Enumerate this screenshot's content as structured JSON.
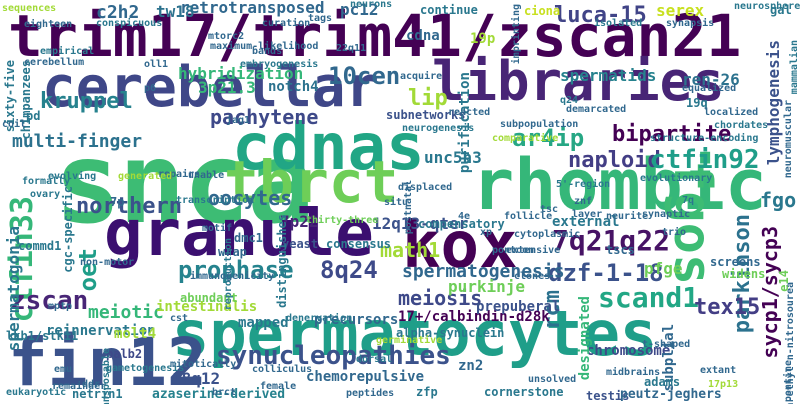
{
  "colors": {
    "background": "#ffffff",
    "palette": [
      "#440154",
      "#482576",
      "#3f4788",
      "#31688e",
      "#26828e",
      "#1f9e89",
      "#35b779",
      "#6ece58",
      "#b5de2b",
      "#fde725"
    ]
  },
  "words": [
    {
      "text": "trim17/trim41/zscan21",
      "color": "#440154"
    },
    {
      "text": "snca",
      "color": "#3dbc74"
    },
    {
      "text": "cerebellar",
      "color": "#3f4788"
    },
    {
      "text": "libraries",
      "color": "#482576"
    },
    {
      "text": "cdnas",
      "color": "#21a685"
    },
    {
      "text": "rhombic",
      "color": "#35b779"
    },
    {
      "text": "tbrct",
      "color": "#6ece58"
    },
    {
      "text": "granule",
      "color": "#3b0f70"
    },
    {
      "text": "kox",
      "color": "#440154"
    },
    {
      "text": "spermatocytes",
      "color": "#1f9e89"
    },
    {
      "text": "fin12",
      "color": "#3b528b"
    },
    {
      "text": "fgos",
      "color": "#3dbc74"
    },
    {
      "text": "trim17",
      "color": "#2a788e"
    },
    {
      "text": "10cen",
      "color": "#31688e"
    },
    {
      "text": "kruppel",
      "color": "#26828e"
    },
    {
      "text": "luca-15",
      "color": "#414487"
    },
    {
      "text": "multi-finger",
      "color": "#2c728e"
    },
    {
      "text": "pachytene",
      "color": "#3e4989"
    },
    {
      "text": "ar4ip",
      "color": "#26a784"
    },
    {
      "text": "bipartite",
      "color": "#440154"
    },
    {
      "text": "naploid",
      "color": "#433e85"
    },
    {
      "text": "ctfin92",
      "color": "#1f9e89"
    },
    {
      "text": "ctfin33",
      "color": "#35b779"
    },
    {
      "text": "fgo",
      "color": "#2a788e"
    },
    {
      "text": "northern",
      "color": "#3b528b"
    },
    {
      "text": "prophase",
      "color": "#25838e"
    },
    {
      "text": "8q24",
      "color": "#3e4a89"
    },
    {
      "text": "7q21q22",
      "color": "#471365"
    },
    {
      "text": "parkinson",
      "color": "#2c728e"
    },
    {
      "text": "sycp1/sycp3",
      "color": "#440154"
    },
    {
      "text": "dzf-1-18",
      "color": "#3b528b"
    },
    {
      "text": "oet",
      "color": "#1f9e89"
    },
    {
      "text": "math1",
      "color": "#a2da37"
    },
    {
      "text": "spermatogenesis",
      "color": "#31688e"
    },
    {
      "text": "zscan",
      "color": "#482576"
    },
    {
      "text": "synucleopathies",
      "color": "#3b528b"
    },
    {
      "text": "scand1",
      "color": "#22a785"
    },
    {
      "text": "fin12",
      "color": "#3b528b"
    },
    {
      "text": "tex15",
      "color": "#433e85"
    },
    {
      "text": "rcm",
      "color": "#2c728e"
    },
    {
      "text": "meiosis",
      "color": "#3e4989"
    },
    {
      "text": "oocytes",
      "color": "#31688e"
    },
    {
      "text": "spermatogonia",
      "color": "#2a788e"
    },
    {
      "text": "retrotransposed",
      "color": "#31688e"
    },
    {
      "text": "hybridization",
      "color": "#35b779"
    },
    {
      "text": "lip",
      "color": "#a2da37"
    },
    {
      "text": "spermatids",
      "color": "#26828e"
    },
    {
      "text": "ren-26",
      "color": "#2c728e"
    },
    {
      "text": "serex",
      "color": "#c8e020"
    },
    {
      "text": "unc5h3",
      "color": "#2a788e"
    },
    {
      "text": "purkinje",
      "color": "#6ece58"
    },
    {
      "text": "external",
      "color": "#2a788e"
    },
    {
      "text": "pfge",
      "color": "#6ece58"
    },
    {
      "text": "12q13-qter",
      "color": "#3b528b"
    },
    {
      "text": "7p22",
      "color": "#482576"
    },
    {
      "text": "chromosome",
      "color": "#3e4989"
    },
    {
      "text": "designated",
      "color": "#35b779"
    },
    {
      "text": "subplial",
      "color": "#31688e"
    },
    {
      "text": "c2h2",
      "color": "#31688e"
    },
    {
      "text": "tw18",
      "color": "#2c728e"
    },
    {
      "text": "pc12",
      "color": "#31688e"
    },
    {
      "text": "cdna",
      "color": "#31688e"
    },
    {
      "text": "19p",
      "color": "#a2da37"
    },
    {
      "text": "3p21.3",
      "color": "#35b779"
    },
    {
      "text": "notch4",
      "color": "#2c728e"
    },
    {
      "text": "lymphogenesis",
      "color": "#3b528b"
    },
    {
      "text": "17+/calbindin-d28k",
      "color": "#440154"
    },
    {
      "text": "meiotic",
      "color": "#35b779"
    },
    {
      "text": "intestinalis",
      "color": "#a2da37"
    },
    {
      "text": "reinnervation",
      "color": "#2a788e"
    },
    {
      "text": "chemorepulsive",
      "color": "#31688e"
    },
    {
      "text": "18q12",
      "color": "#3b528b"
    },
    {
      "text": "azaserine-derived",
      "color": "#26828e"
    },
    {
      "text": "mapped",
      "color": "#2a788e"
    },
    {
      "text": "precursors",
      "color": "#31688e"
    },
    {
      "text": "alpha-synuclein",
      "color": "#2a788e"
    },
    {
      "text": "cornerstone",
      "color": "#2a788e"
    },
    {
      "text": "testis",
      "color": "#3b528b"
    },
    {
      "text": "peutz-jeghers",
      "color": "#31688e"
    },
    {
      "text": "zn2",
      "color": "#31688e"
    },
    {
      "text": "zfp",
      "color": "#2a788e"
    },
    {
      "text": "adams",
      "color": "#2a788e"
    },
    {
      "text": "molt4",
      "color": "#a2da37"
    },
    {
      "text": "palb2",
      "color": "#3e4989"
    },
    {
      "text": "netrin1",
      "color": "#2a788e"
    },
    {
      "text": "lkb1/stk11",
      "color": "#2a788e"
    },
    {
      "text": "commd1",
      "color": "#2a788e"
    },
    {
      "text": "consensus",
      "color": "#2a788e"
    },
    {
      "text": "yeast",
      "color": "#3b528b"
    },
    {
      "text": "dmc1",
      "color": "#31688e"
    },
    {
      "text": "wrap",
      "color": "#31688e"
    },
    {
      "text": "tscs",
      "color": "#31688e"
    },
    {
      "text": "screens",
      "color": "#31688e"
    },
    {
      "text": "widens",
      "color": "#6ece58"
    },
    {
      "text": "abundant",
      "color": "#6ece58"
    },
    {
      "text": "prepuberal",
      "color": "#3b528b"
    },
    {
      "text": "compensatory",
      "color": "#2a788e"
    },
    {
      "text": "subnetworks",
      "color": "#3b528b"
    },
    {
      "text": "purification",
      "color": "#2a788e"
    },
    {
      "text": "sixty-five",
      "color": "#2a788e"
    },
    {
      "text": "chimpanzees",
      "color": "#2a788e"
    },
    {
      "text": "sequences",
      "color": "#a2da37"
    },
    {
      "text": "eighteen",
      "color": "#31688e"
    },
    {
      "text": "conspicuous",
      "color": "#2a788e"
    },
    {
      "text": "neurons",
      "color": "#2a788e"
    },
    {
      "text": "continue",
      "color": "#2a788e"
    },
    {
      "text": "ciona",
      "color": "#c8e020"
    },
    {
      "text": "neurosphere",
      "color": "#2a788e"
    },
    {
      "text": "gal",
      "color": "#2a788e"
    },
    {
      "text": "synapsis",
      "color": "#31688e"
    },
    {
      "text": "isolated",
      "color": "#2a788e"
    },
    {
      "text": "tags",
      "color": "#31688e"
    },
    {
      "text": "curation",
      "color": "#31688e"
    },
    {
      "text": "empirical",
      "color": "#2a788e"
    },
    {
      "text": "cerebellum",
      "color": "#31688e"
    },
    {
      "text": "bands",
      "color": "#31688e"
    },
    {
      "text": "22q11",
      "color": "#31688e"
    },
    {
      "text": "embryogenesis",
      "color": "#2a788e"
    },
    {
      "text": "acquire",
      "color": "#31688e"
    },
    {
      "text": "19q",
      "color": "#2a788e"
    },
    {
      "text": "q24",
      "color": "#2a788e"
    },
    {
      "text": "localized",
      "color": "#31688e"
    },
    {
      "text": "chordates",
      "color": "#2a788e"
    },
    {
      "text": "structure-encoding",
      "color": "#2a788e"
    },
    {
      "text": "evolutionary",
      "color": "#2a788e"
    },
    {
      "text": "repairs",
      "color": "#31688e"
    },
    {
      "text": "unable",
      "color": "#31688e"
    },
    {
      "text": "displaced",
      "color": "#31688e"
    },
    {
      "text": "evolving",
      "color": "#2a788e"
    },
    {
      "text": "generated",
      "color": "#a2da37"
    },
    {
      "text": "formally",
      "color": "#2a788e"
    },
    {
      "text": "ovary",
      "color": "#2a788e"
    },
    {
      "text": "cgc-specific",
      "color": "#2a788e"
    },
    {
      "text": "7p",
      "color": "#31688e"
    },
    {
      "text": "non-motor",
      "color": "#31688e"
    },
    {
      "text": "motif",
      "color": "#31688e"
    },
    {
      "text": "reproduction",
      "color": "#2a788e"
    },
    {
      "text": "immunogenicity",
      "color": "#31688e"
    },
    {
      "text": "distinguishes",
      "color": "#2a788e"
    },
    {
      "text": "thirty-three",
      "color": "#6ece58"
    },
    {
      "text": "situ",
      "color": "#31688e"
    },
    {
      "text": "znf",
      "color": "#31688e"
    },
    {
      "text": "layer",
      "color": "#31688e"
    },
    {
      "text": "follicle",
      "color": "#31688e"
    },
    {
      "text": "tsc",
      "color": "#31688e"
    },
    {
      "text": "extensive",
      "color": "#31688e"
    },
    {
      "text": "clones",
      "color": "#31688e"
    },
    {
      "text": "synaptic",
      "color": "#31688e"
    },
    {
      "text": "e14",
      "color": "#6ece58"
    },
    {
      "text": "germinative",
      "color": "#a2da37"
    },
    {
      "text": "denervation",
      "color": "#2a788e"
    },
    {
      "text": "cst",
      "color": "#31688e"
    },
    {
      "text": "mptp",
      "color": "#31688e"
    },
    {
      "text": "remainder",
      "color": "#31688e"
    },
    {
      "text": "emu",
      "color": "#31688e"
    },
    {
      "text": "gametogenesis",
      "color": "#2a788e"
    },
    {
      "text": "mitotically",
      "color": "#31688e"
    },
    {
      "text": "colliculus",
      "color": "#31688e"
    },
    {
      "text": "female",
      "color": "#31688e"
    },
    {
      "text": "ddr",
      "color": "#31688e"
    },
    {
      "text": "transposable",
      "color": "#2a788e"
    },
    {
      "text": "eukaryotic",
      "color": "#2a788e"
    },
    {
      "text": "peptides",
      "color": "#31688e"
    },
    {
      "text": "unsolved",
      "color": "#31688e"
    },
    {
      "text": "midbrains",
      "color": "#31688e"
    },
    {
      "text": "extant",
      "color": "#31688e"
    },
    {
      "text": "17p13",
      "color": "#a2da37"
    },
    {
      "text": "pontine",
      "color": "#31688e"
    },
    {
      "text": "pd",
      "color": "#2a788e"
    },
    {
      "text": "coil",
      "color": "#31688e"
    },
    {
      "text": "jag1",
      "color": "#31688e"
    },
    {
      "text": "reacted",
      "color": "#31688e"
    },
    {
      "text": "neurogenesis",
      "color": "#2a788e"
    },
    {
      "text": "5'-region",
      "color": "#2a788e"
    },
    {
      "text": "n-ethyl-n-nitrosourea",
      "color": "#31688e"
    },
    {
      "text": "mammalian",
      "color": "#2a788e"
    },
    {
      "text": "transcription",
      "color": "#2a788e"
    },
    {
      "text": "postnatal",
      "color": "#31688e"
    },
    {
      "text": "maximum-likelihood",
      "color": "#31688e"
    },
    {
      "text": "mtorc2",
      "color": "#31688e"
    },
    {
      "text": "oll1",
      "color": "#31688e"
    },
    {
      "text": "p6",
      "color": "#31688e"
    },
    {
      "text": "equalized",
      "color": "#31688e"
    },
    {
      "text": "neuromuscular",
      "color": "#31688e"
    },
    {
      "text": "subpopulation",
      "color": "#31688e"
    },
    {
      "text": "imprinting",
      "color": "#31688e"
    },
    {
      "text": "demarcated",
      "color": "#31688e"
    },
    {
      "text": "comparative",
      "color": "#a2da37"
    },
    {
      "text": "t-shaped",
      "color": "#31688e"
    },
    {
      "text": "cytoplasmic",
      "color": "#31688e"
    },
    {
      "text": "brct",
      "color": "#31688e"
    },
    {
      "text": "dorsal",
      "color": "#2a788e"
    },
    {
      "text": "4e",
      "color": "#31688e"
    },
    {
      "text": "xp",
      "color": "#31688e"
    },
    {
      "text": "pontoon",
      "color": "#31688e"
    },
    {
      "text": "7q",
      "color": "#2a788e"
    },
    {
      "text": "trio",
      "color": "#31688e"
    },
    {
      "text": "neurite",
      "color": "#31688e"
    }
  ]
}
